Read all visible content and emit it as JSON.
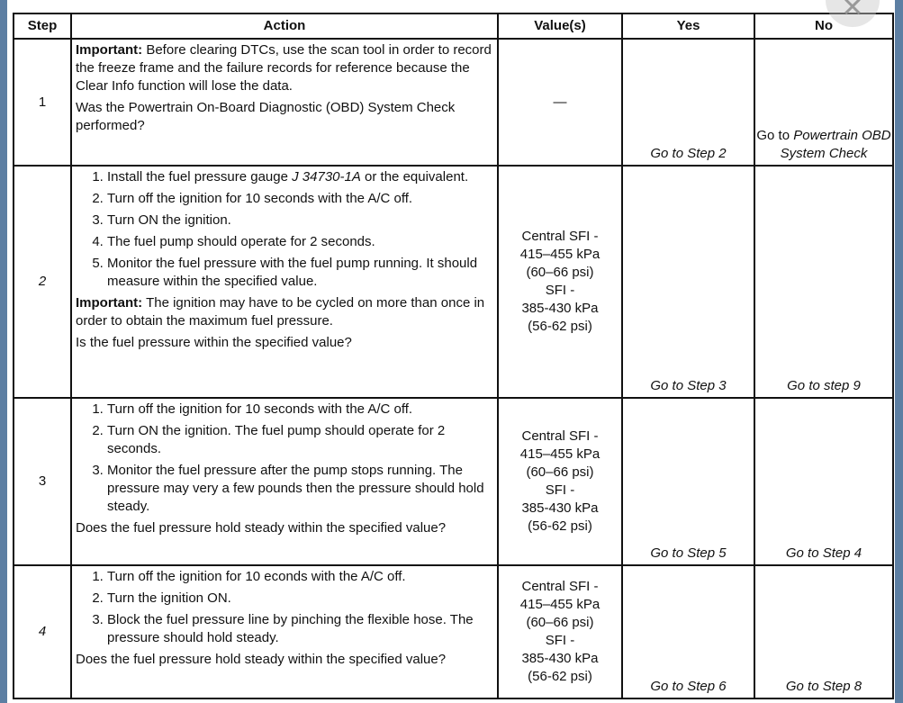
{
  "headers": [
    "Step",
    "Action",
    "Value(s)",
    "Yes",
    "No"
  ],
  "rows": [
    {
      "step": "1",
      "important_label": "Important:",
      "important_text": " Before clearing DTCs, use the scan tool in order to record the freeze frame and the failure records for reference because the Clear Info function will lose the data.",
      "question": "Was the Powertrain On-Board Diagnostic (OBD) System Check performed?",
      "value": "—",
      "yes": "Go to Step 2",
      "no_prefix": "Go to ",
      "no_link": "Powertrain OBD System Check"
    },
    {
      "step": "2",
      "items": [
        "Install the fuel pressure gauge ",
        "Turn off the ignition for 10 seconds with the A/C off.",
        "Turn ON the ignition.",
        "The fuel pump should operate for 2 seconds.",
        "Monitor the fuel pressure with the fuel pump running. It should measure within the specified value."
      ],
      "item1_tool": "J 34730-1A",
      "item1_suffix": " or the equivalent.",
      "important_label": "Important:",
      "important_text": " The ignition may have to be cycled on more than once in order to obtain the maximum fuel pressure.",
      "question": "Is the fuel pressure within the specified value?",
      "value": [
        "Central SFI -",
        "415–455 kPa",
        "(60–66 psi)",
        "SFI -",
        "385-430 kPa",
        "(56-62 psi)"
      ],
      "yes": "Go to Step 3",
      "no": "Go to step 9"
    },
    {
      "step": "3",
      "items": [
        "Turn off the ignition for 10 seconds with the A/C off.",
        "Turn ON the ignition. The fuel pump should operate for 2 seconds.",
        "Monitor the fuel pressure after the pump stops running. The pressure may very a few pounds then the pressure should hold steady."
      ],
      "question": "Does the fuel pressure hold steady within the specified value?",
      "value": [
        "Central SFI -",
        "415–455 kPa",
        "(60–66 psi)",
        "SFI -",
        "385-430 kPa",
        "(56-62 psi)"
      ],
      "yes": "Go to Step 5",
      "no": "Go to Step 4"
    },
    {
      "step": "4",
      "items": [
        "Turn off the ignition for 10  econds with the A/C off.",
        "Turn the ignition ON.",
        "Block the fuel pressure line by pinching the flexible hose. The pressure should hold steady."
      ],
      "question": "Does the fuel pressure hold steady within the specified value?",
      "value": [
        "Central SFI -",
        "415–455 kPa",
        "(60–66 psi)",
        "SFI -",
        "385-430 kPa",
        "(56-62 psi)"
      ],
      "yes": "Go to Step 6",
      "no": "Go to Step 8"
    }
  ]
}
